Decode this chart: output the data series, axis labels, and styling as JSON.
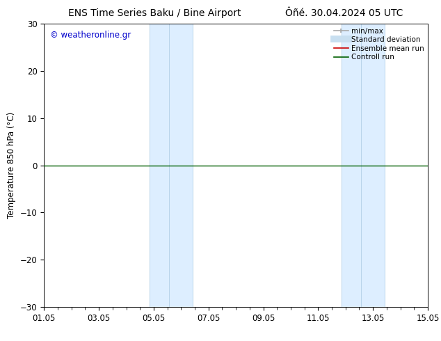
{
  "title_left": "ENS Time Series Baku / Bine Airport",
  "title_right": "Ôñé. 30.04.2024 05 UTC",
  "ylabel": "Temperature 850 hPa (°C)",
  "watermark": "© weatheronline.gr",
  "ylim": [
    -30,
    30
  ],
  "yticks": [
    -30,
    -20,
    -10,
    0,
    10,
    20,
    30
  ],
  "xtick_labels": [
    "01.05",
    "03.05",
    "05.05",
    "07.05",
    "09.05",
    "11.05",
    "13.05",
    "15.05"
  ],
  "xtick_positions": [
    0,
    2,
    4,
    6,
    8,
    10,
    12,
    14
  ],
  "xlim": [
    0,
    14
  ],
  "shaded_regions": [
    {
      "x_start": 3.83,
      "x_end": 4.58,
      "label": "left"
    },
    {
      "x_start": 4.58,
      "x_end": 5.42,
      "label": "right"
    }
  ],
  "shaded_regions2": [
    {
      "x_start": 10.83,
      "x_end": 11.58,
      "label": "left"
    },
    {
      "x_start": 11.58,
      "x_end": 12.42,
      "label": "right"
    }
  ],
  "shaded_color": "#ddeeff",
  "shaded_edge_color": "#b8d4ea",
  "control_run_y": 0.0,
  "control_run_color": "#006000",
  "ensemble_mean_color": "#cc0000",
  "background_color": "#ffffff",
  "legend_items": [
    {
      "label": "min/max",
      "color": "#aaaaaa",
      "lw": 1.2
    },
    {
      "label": "Standard deviation",
      "color": "#c8dff0",
      "lw": 7
    },
    {
      "label": "Ensemble mean run",
      "color": "#cc0000",
      "lw": 1.2
    },
    {
      "label": "Controll run",
      "color": "#006000",
      "lw": 1.2
    }
  ],
  "title_fontsize": 10,
  "tick_label_fontsize": 8.5,
  "ylabel_fontsize": 8.5,
  "watermark_fontsize": 8.5,
  "legend_fontsize": 7.5
}
